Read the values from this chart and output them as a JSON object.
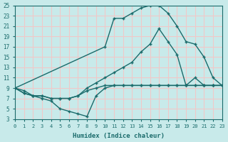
{
  "xlabel": "Humidex (Indice chaleur)",
  "bg_color": "#c8eaea",
  "line_color": "#1a6b6b",
  "grid_color": "#f0c8c8",
  "xlim": [
    0,
    23
  ],
  "ylim": [
    3,
    25
  ],
  "xticks": [
    0,
    1,
    2,
    3,
    4,
    5,
    6,
    7,
    8,
    9,
    10,
    11,
    12,
    13,
    14,
    15,
    16,
    17,
    18,
    19,
    20,
    21,
    22,
    23
  ],
  "yticks": [
    3,
    5,
    7,
    9,
    11,
    13,
    15,
    17,
    19,
    21,
    23,
    25
  ],
  "series": [
    {
      "x": [
        0,
        1,
        2,
        3,
        4,
        5,
        6,
        7,
        8,
        9,
        10,
        11,
        12,
        13,
        14,
        15,
        16,
        17,
        18,
        19,
        20,
        21,
        22,
        23
      ],
      "y": [
        9,
        8.0,
        7.5,
        7.5,
        7.0,
        7.0,
        7.0,
        7.5,
        8.5,
        9.0,
        9.5,
        9.5,
        9.5,
        9.5,
        9.5,
        9.5,
        9.5,
        9.5,
        9.5,
        9.5,
        9.5,
        9.5,
        9.5,
        9.5
      ]
    },
    {
      "x": [
        0,
        1,
        2,
        3,
        4,
        5,
        6,
        7,
        8,
        9,
        10,
        11,
        12,
        13,
        14,
        15,
        16,
        17,
        18,
        19,
        20,
        21,
        22,
        23
      ],
      "y": [
        9,
        8.5,
        7.5,
        7.5,
        7.0,
        7.0,
        7.0,
        7.5,
        9.0,
        10.0,
        11.0,
        12.0,
        13.0,
        14.0,
        16.0,
        17.5,
        20.5,
        18.0,
        15.5,
        9.5,
        11.0,
        9.5,
        9.5,
        9.5
      ]
    },
    {
      "x": [
        0,
        10,
        11,
        12,
        13,
        14,
        15,
        16,
        17,
        18,
        19,
        20,
        21,
        22,
        23
      ],
      "y": [
        9,
        17.0,
        22.5,
        22.5,
        23.5,
        24.5,
        25.0,
        25.0,
        23.5,
        21.0,
        18.0,
        17.5,
        15.0,
        11.0,
        9.5
      ]
    },
    {
      "x": [
        0,
        1,
        2,
        3,
        4,
        5,
        6,
        7,
        8,
        9,
        10,
        11,
        12,
        13,
        14,
        15,
        16,
        17,
        18,
        19,
        20,
        21,
        22,
        23
      ],
      "y": [
        9,
        8.0,
        7.5,
        7.0,
        6.5,
        5.0,
        4.5,
        4.0,
        3.5,
        7.5,
        9.0,
        9.5,
        9.5,
        9.5,
        9.5,
        9.5,
        9.5,
        9.5,
        9.5,
        9.5,
        9.5,
        9.5,
        9.5,
        9.5
      ]
    }
  ]
}
